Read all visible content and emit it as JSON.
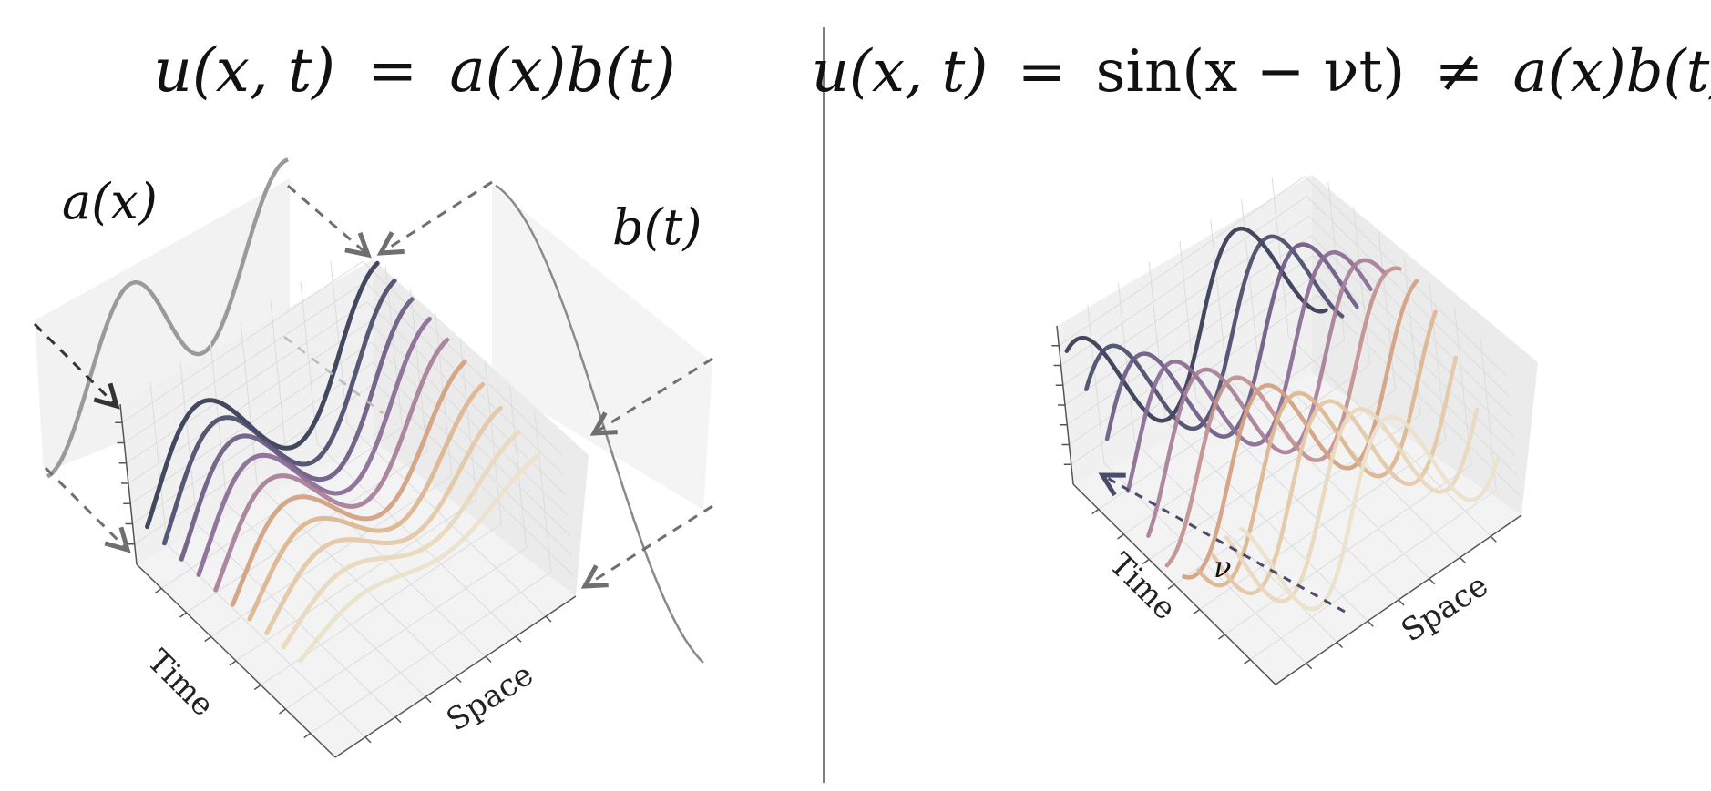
{
  "left_panel": {
    "equation": {
      "lhs": "u(x, t)",
      "eq": "=",
      "rhs": "a(x)b(t)"
    },
    "label_a": "a(x)",
    "label_b": "b(t)",
    "axis_time": "Time",
    "axis_space": "Space"
  },
  "right_panel": {
    "equation": {
      "lhs": "u(x, t)",
      "eq": "=",
      "mid": "sin(x − νt)",
      "neq": "≠",
      "rhs": "a(x)b(t)"
    },
    "velocity_label": "ν",
    "axis_time": "Time",
    "axis_space": "Space"
  },
  "colors": {
    "palette": [
      "#343a52",
      "#4a4b6b",
      "#6b5a82",
      "#8a6a94",
      "#a77e98",
      "#c28f8f",
      "#d4a080",
      "#ddb58f",
      "#e4c8a5",
      "#e9d8bb",
      "#ece2cc"
    ],
    "profile_curve": "#9a9a9a",
    "divider": "#555555"
  }
}
